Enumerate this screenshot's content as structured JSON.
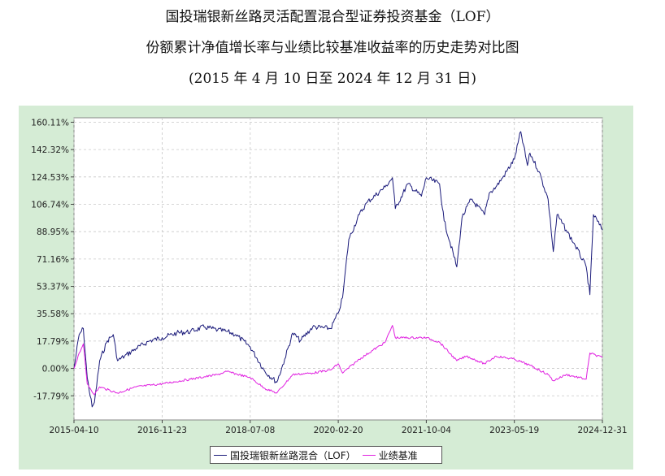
{
  "titles": {
    "line1": "国投瑞银新丝路灵活配置混合型证券投资基金（LOF）",
    "line2": "份额累计净值增长率与业绩比较基准收益率的历史走势对比图",
    "line3": "(2015 年 4 月 10 日至 2024 年 12 月 31 日)"
  },
  "colors": {
    "fund": "#1a1a7a",
    "benchmark": "#e020e0",
    "frame": "#d5ecd5",
    "grid": "#c8c8c8"
  },
  "chart_data": {
    "type": "line",
    "title": "份额累计净值增长率与业绩比较基准收益率的历史走势对比图",
    "xlabel": "",
    "ylabel": "",
    "x_ticks": [
      "2015-04-10",
      "2016-11-23",
      "2018-07-08",
      "2020-02-20",
      "2021-10-04",
      "2023-05-19",
      "2024-12-31"
    ],
    "y_ticks": [
      "160.11%",
      "142.32%",
      "124.53%",
      "106.74%",
      "88.95%",
      "71.16%",
      "53.37%",
      "35.58%",
      "17.79%",
      "0.00%",
      "-17.79%"
    ],
    "xlim": [
      "2015-04-10",
      "2024-12-31"
    ],
    "ylim": [
      -33.5,
      163
    ],
    "grid": true,
    "legend": "bottom-center",
    "series": [
      {
        "name": "国投瑞银新丝路混合（LOF）",
        "x": [
          "2015-04-10",
          "2015-05-15",
          "2015-06-12",
          "2015-07-08",
          "2015-08-10",
          "2015-08-26",
          "2015-09-30",
          "2015-11-20",
          "2015-12-30",
          "2016-01-28",
          "2016-03-15",
          "2016-06-01",
          "2016-09-01",
          "2016-11-23",
          "2017-03-01",
          "2017-06-01",
          "2017-09-01",
          "2017-12-01",
          "2018-02-01",
          "2018-04-01",
          "2018-07-08",
          "2018-10-15",
          "2019-01-03",
          "2019-02-25",
          "2019-04-20",
          "2019-06-10",
          "2019-09-01",
          "2019-12-31",
          "2020-02-20",
          "2020-03-20",
          "2020-05-01",
          "2020-07-10",
          "2020-09-01",
          "2020-12-31",
          "2021-02-18",
          "2021-03-10",
          "2021-06-01",
          "2021-09-01",
          "2021-10-04",
          "2022-01-01",
          "2022-02-01",
          "2022-04-27",
          "2022-06-01",
          "2022-08-01",
          "2022-10-31",
          "2022-12-01",
          "2023-01-15",
          "2023-03-01",
          "2023-05-19",
          "2023-07-01",
          "2023-08-15",
          "2023-09-01",
          "2023-11-01",
          "2024-01-01",
          "2024-02-05",
          "2024-03-01",
          "2024-05-01",
          "2024-07-01",
          "2024-09-13",
          "2024-10-08",
          "2024-11-01",
          "2024-12-31"
        ],
        "y": [
          0,
          22,
          26,
          -6,
          -25,
          -22,
          5,
          18,
          22,
          5,
          8,
          13,
          18,
          20,
          23,
          24,
          27,
          25,
          24,
          22,
          14,
          -2,
          -9,
          6,
          23,
          18,
          27,
          26,
          36,
          46,
          84,
          100,
          108,
          118,
          124,
          104,
          120,
          112,
          124,
          120,
          96,
          66,
          98,
          110,
          100,
          114,
          118,
          124,
          136,
          154,
          132,
          140,
          128,
          110,
          76,
          100,
          90,
          80,
          66,
          48,
          100,
          90
        ]
      },
      {
        "name": "业绩基准",
        "x": [
          "2015-04-10",
          "2015-05-15",
          "2015-06-12",
          "2015-07-08",
          "2015-08-26",
          "2015-09-30",
          "2016-01-28",
          "2016-06-01",
          "2016-11-23",
          "2017-06-01",
          "2017-12-01",
          "2018-02-01",
          "2018-07-08",
          "2018-10-15",
          "2019-01-03",
          "2019-04-20",
          "2019-09-01",
          "2019-12-31",
          "2020-02-20",
          "2020-03-20",
          "2020-07-10",
          "2020-12-31",
          "2021-02-18",
          "2021-03-10",
          "2021-10-04",
          "2022-01-01",
          "2022-04-27",
          "2022-07-01",
          "2022-10-31",
          "2023-01-15",
          "2023-05-19",
          "2023-09-01",
          "2024-01-01",
          "2024-02-05",
          "2024-05-01",
          "2024-09-13",
          "2024-10-08",
          "2024-12-31"
        ],
        "y": [
          0,
          10,
          16,
          -10,
          -17,
          -12,
          -16,
          -12,
          -10,
          -7,
          -4,
          -2,
          -6,
          -13,
          -16,
          -4,
          -3,
          -1,
          3,
          -3,
          6,
          17,
          28,
          20,
          20,
          17,
          5,
          8,
          3,
          8,
          6,
          2,
          -4,
          -8,
          -4,
          -7,
          10,
          7
        ]
      }
    ]
  }
}
